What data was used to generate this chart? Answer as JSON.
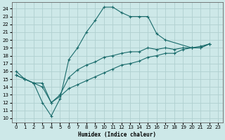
{
  "xlabel": "Humidex (Indice chaleur)",
  "background_color": "#cde8e8",
  "grid_color": "#b0d0d0",
  "line_color": "#1a6b6b",
  "xlim": [
    -0.5,
    23.5
  ],
  "ylim": [
    9.5,
    24.8
  ],
  "xticks": [
    0,
    1,
    2,
    3,
    4,
    5,
    6,
    7,
    8,
    9,
    10,
    11,
    12,
    13,
    14,
    15,
    16,
    17,
    18,
    19,
    20,
    21,
    22,
    23
  ],
  "yticks": [
    10,
    11,
    12,
    13,
    14,
    15,
    16,
    17,
    18,
    19,
    20,
    21,
    22,
    23,
    24
  ],
  "series": [
    {
      "x": [
        0,
        1,
        2,
        3,
        4,
        5,
        6,
        7,
        8,
        9,
        10,
        11,
        12,
        13,
        14,
        15,
        16,
        17,
        20,
        21,
        22
      ],
      "y": [
        16,
        15,
        14.5,
        12.0,
        10.3,
        12.5,
        17.5,
        19.0,
        21.0,
        22.5,
        24.2,
        24.2,
        23.5,
        23.0,
        23.0,
        23.0,
        20.8,
        20.0,
        19.0,
        19.0,
        19.5
      ]
    },
    {
      "x": [
        0,
        1,
        2,
        3,
        4,
        5,
        6,
        7,
        8,
        9,
        10,
        11,
        12,
        13,
        14,
        15,
        16,
        17,
        18,
        19,
        20,
        21,
        22
      ],
      "y": [
        15.5,
        15.0,
        14.5,
        14.5,
        12.0,
        13.0,
        15.2,
        16.2,
        16.8,
        17.2,
        17.8,
        18.0,
        18.3,
        18.5,
        18.5,
        19.0,
        18.8,
        19.0,
        18.8,
        19.0,
        19.0,
        19.0,
        19.5
      ]
    },
    {
      "x": [
        0,
        1,
        2,
        3,
        4,
        5,
        6,
        7,
        8,
        9,
        10,
        11,
        12,
        13,
        14,
        15,
        16,
        17,
        18,
        19,
        20,
        21,
        22
      ],
      "y": [
        15.5,
        15.0,
        14.5,
        14.0,
        12.0,
        12.8,
        13.8,
        14.3,
        14.8,
        15.3,
        15.8,
        16.3,
        16.8,
        17.0,
        17.3,
        17.8,
        18.0,
        18.3,
        18.3,
        18.8,
        19.0,
        19.2,
        19.5
      ]
    }
  ]
}
